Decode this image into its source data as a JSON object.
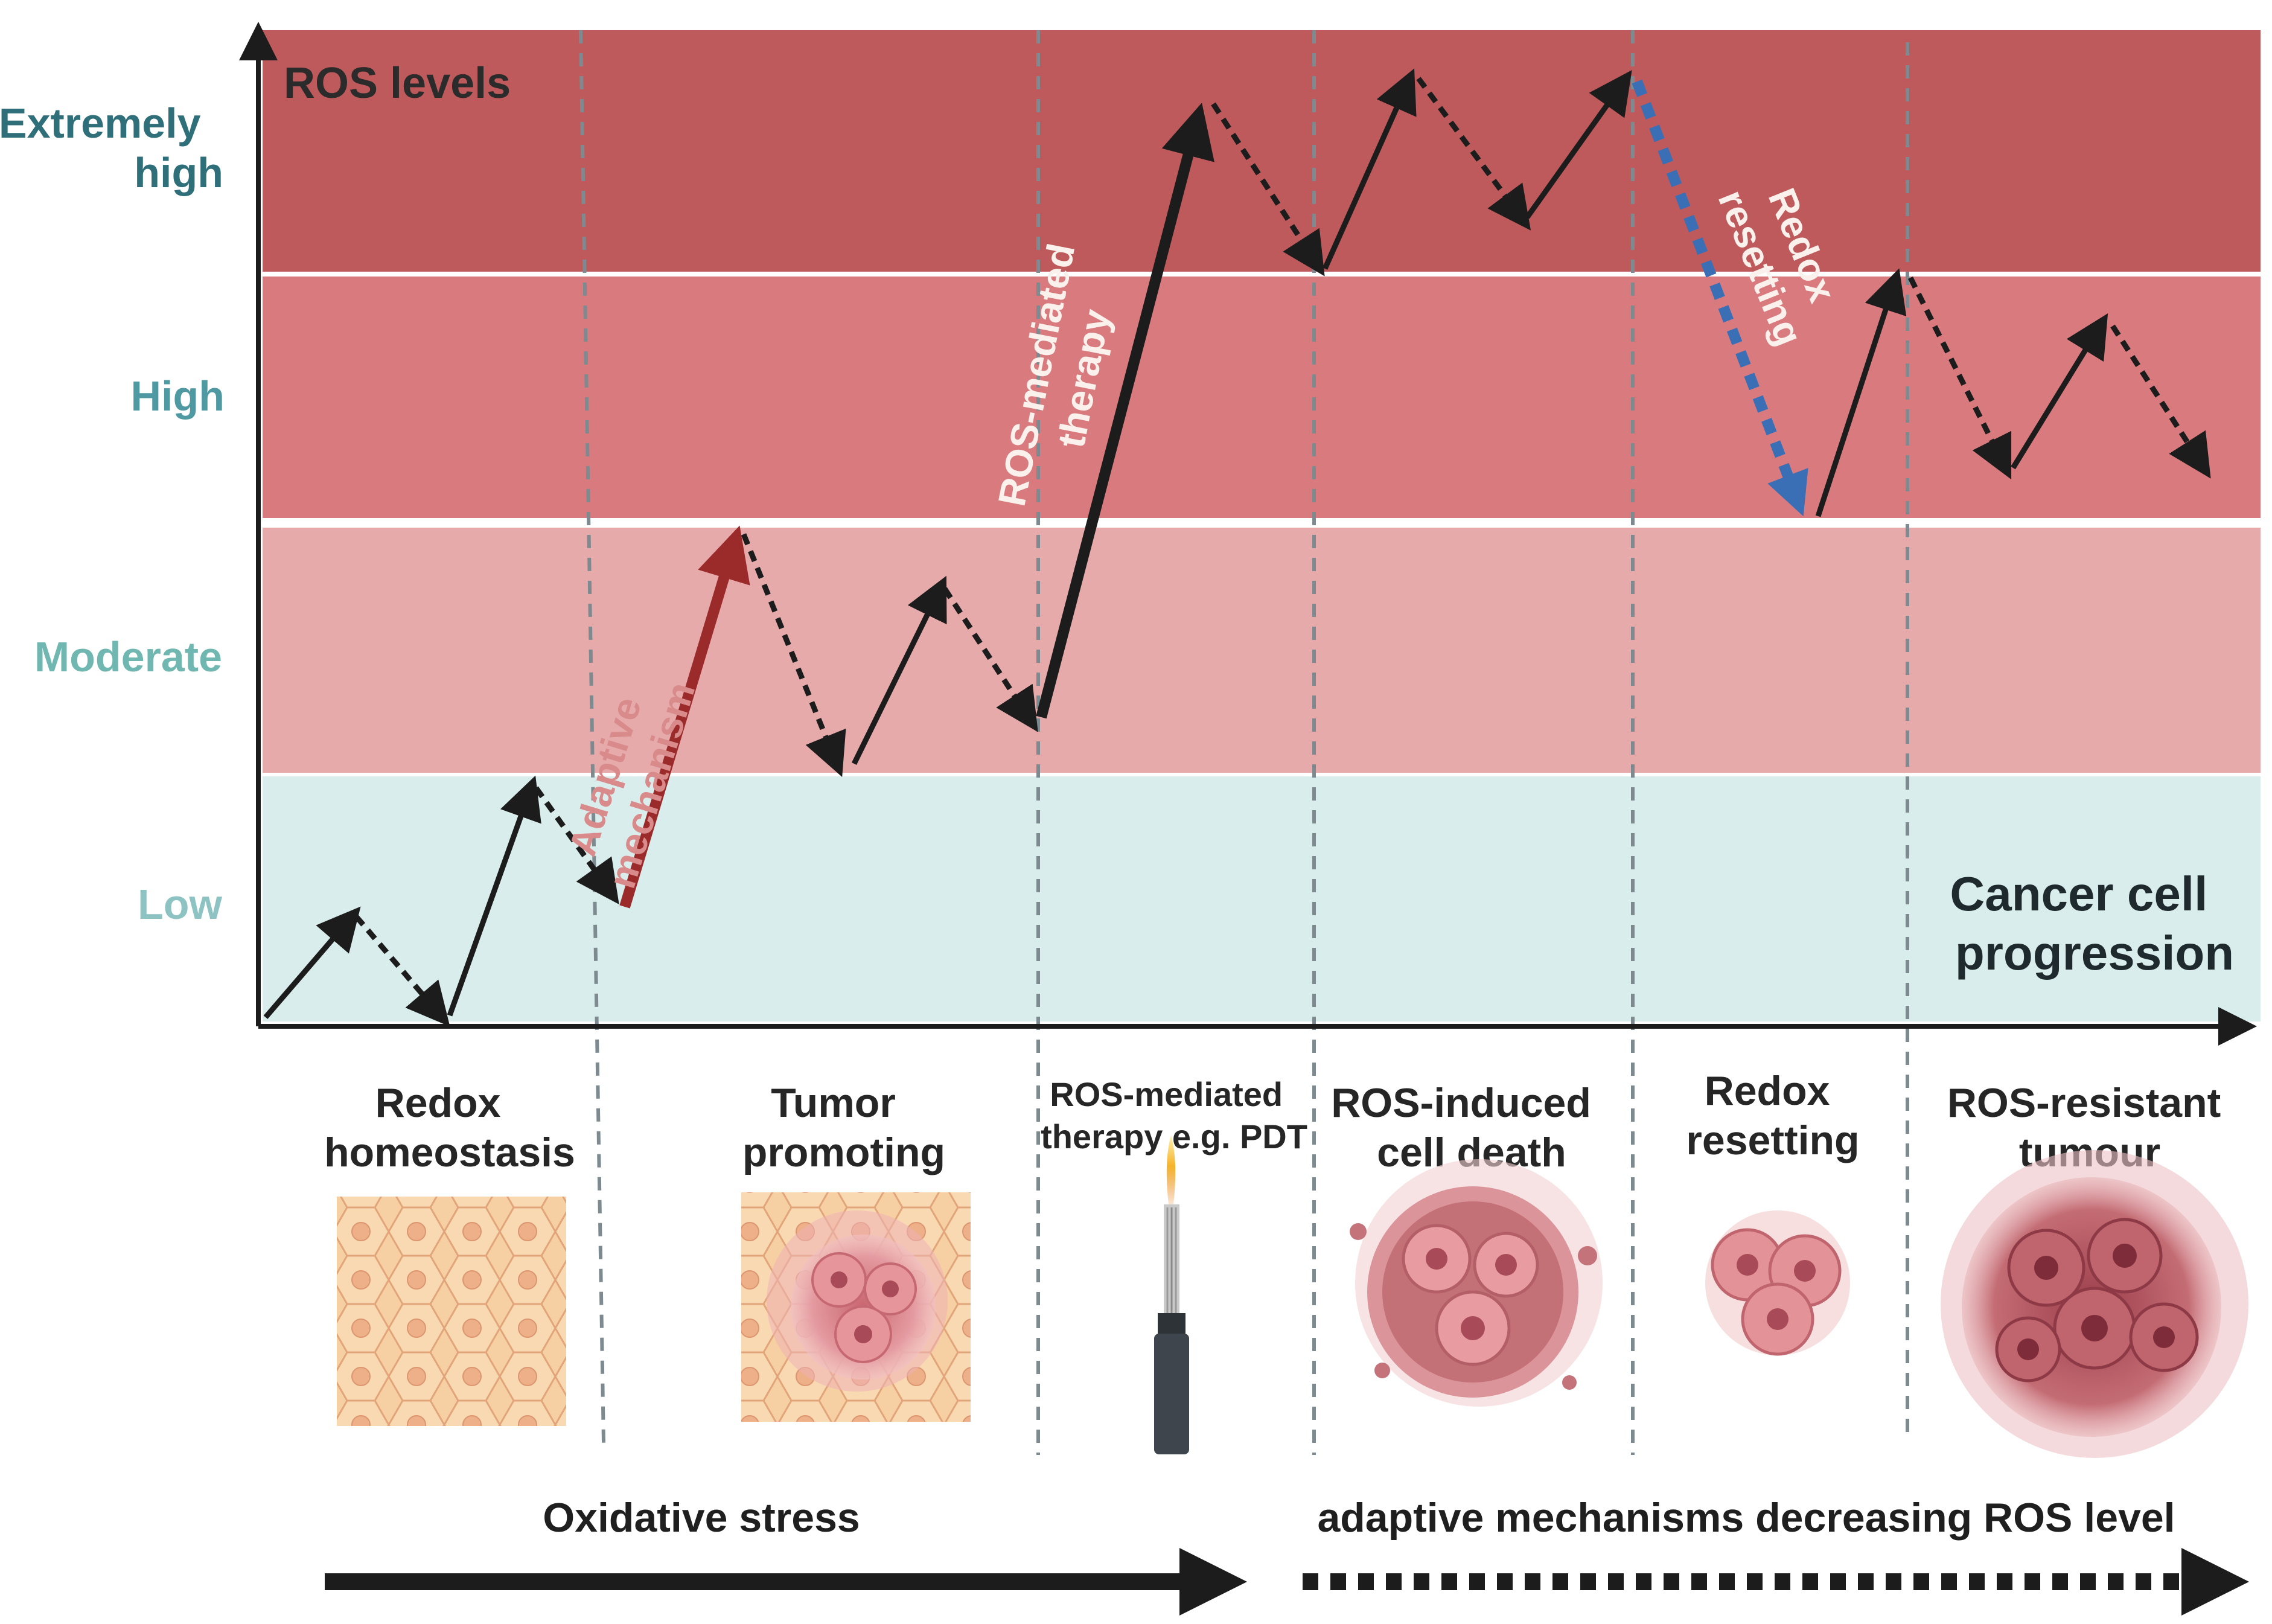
{
  "band_title": "ROS levels",
  "levels": [
    {
      "key": "extremely_high",
      "lines": [
        "Extremely",
        "high"
      ],
      "color": "#2f6f79"
    },
    {
      "key": "high",
      "lines": [
        "High"
      ],
      "color": "#4f99a3"
    },
    {
      "key": "moderate",
      "lines": [
        "Moderate"
      ],
      "color": "#6fb7b0"
    },
    {
      "key": "low",
      "lines": [
        "Low"
      ],
      "color": "#8ec3c3"
    }
  ],
  "band_colors": {
    "extremely_high": "#bf5a5c",
    "high": "#d97b7e",
    "moderate": "#e7aaab",
    "low": "#d9eeec"
  },
  "axis_label": [
    "Cancer cell",
    "progression"
  ],
  "arrow_labels": {
    "adaptive": [
      "Adaptive",
      "mechanism"
    ],
    "therapy": [
      "ROS-mediated",
      "therapy"
    ],
    "redox": [
      "Redox",
      "resetting"
    ]
  },
  "arrow_colors": {
    "main": "#1c1c1c",
    "adaptive": "#9b2a2a",
    "adaptive_label": "#d98b8b",
    "redox": "#3a6fb5"
  },
  "stages": [
    {
      "key": "redox-homeostasis",
      "lines": [
        "Redox",
        "homeostasis"
      ],
      "image": "hexagonal-normal-cells"
    },
    {
      "key": "tumor-promoting",
      "lines": [
        "Tumor",
        "promoting"
      ],
      "image": "tumor-on-normal-tissue"
    },
    {
      "key": "ros-therapy",
      "lines": [
        "ROS-mediated",
        "therapy e.g. PDT"
      ],
      "image": "pdt-light-fiber"
    },
    {
      "key": "ros-cell-death",
      "lines": [
        "ROS-induced",
        "cell death"
      ],
      "image": "dying-cell-cluster"
    },
    {
      "key": "redox-resetting",
      "lines": [
        "Redox",
        "resetting"
      ],
      "image": "small-cell-cluster"
    },
    {
      "key": "ros-resistant",
      "lines": [
        "ROS-resistant",
        "tumour"
      ],
      "image": "large-tumour-mass"
    }
  ],
  "bottom_left_label": "Oxidative stress",
  "bottom_right_label": "adaptive mechanisms decreasing ROS level"
}
